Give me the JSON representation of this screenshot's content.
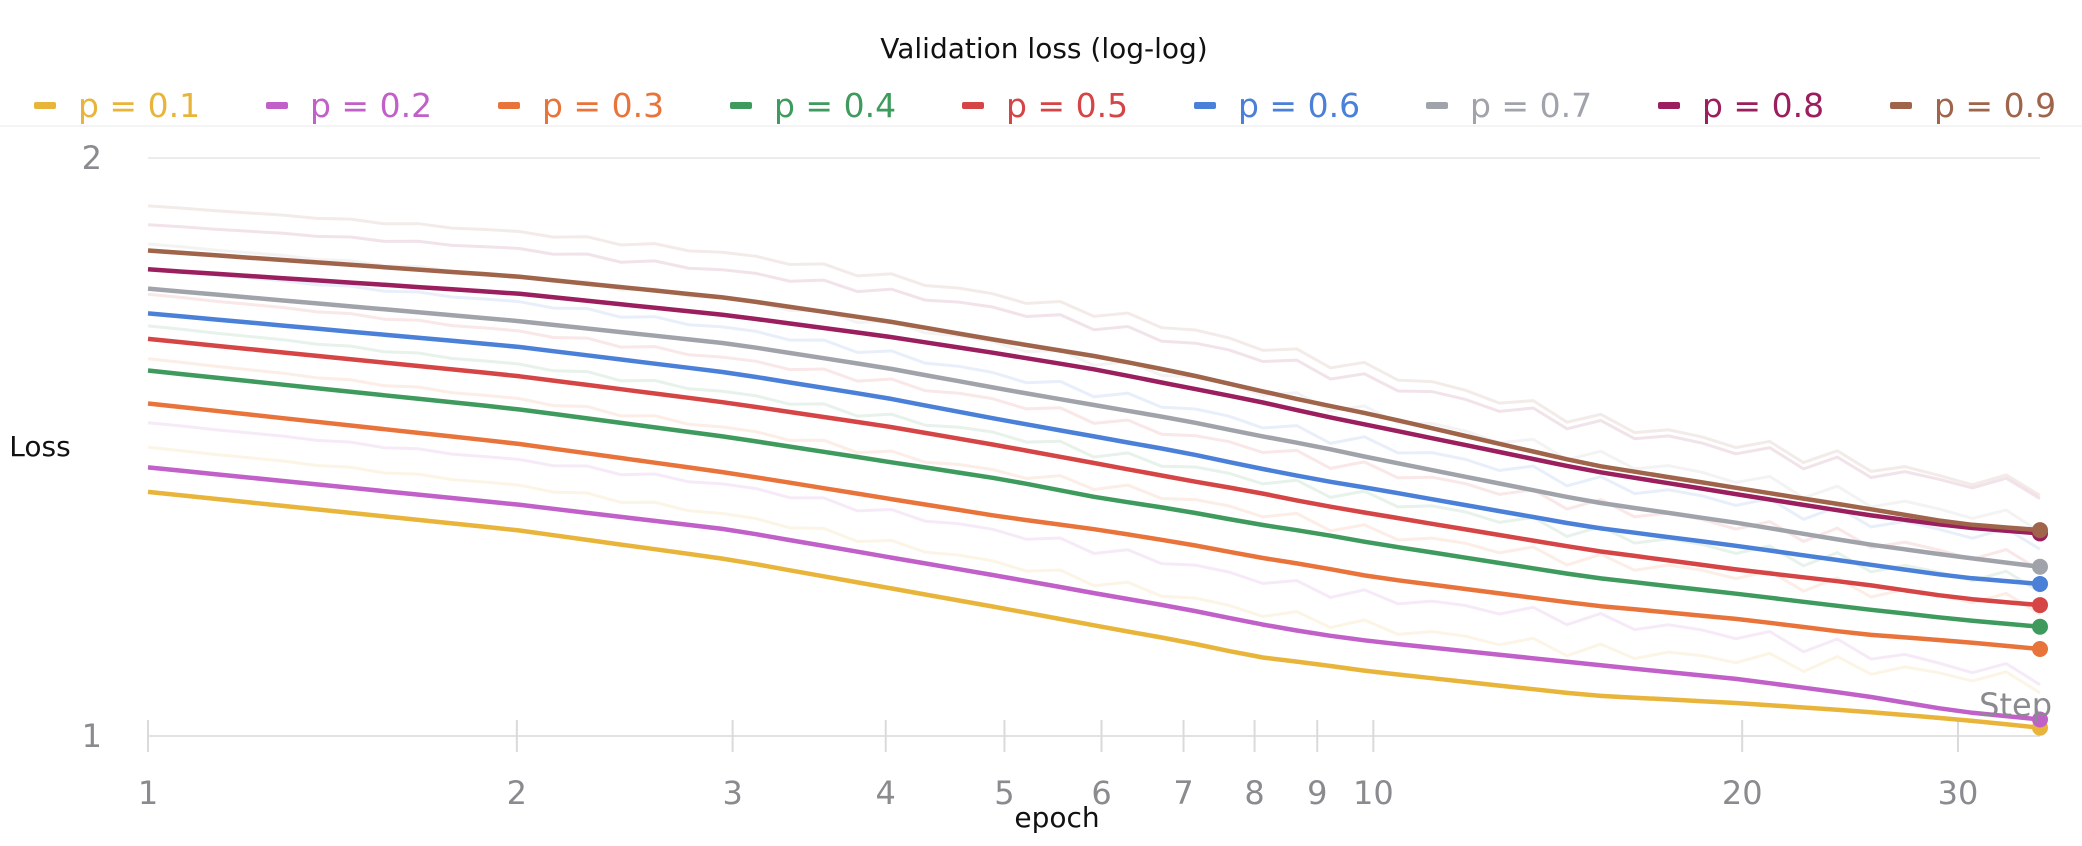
{
  "chart_data": {
    "type": "line",
    "title": "Validation loss (log-log)",
    "xlabel": "epoch",
    "ylabel": "Loss",
    "x_scale": "log",
    "y_scale": "log",
    "xlim": [
      1,
      35
    ],
    "ylim": [
      1,
      2
    ],
    "x_ticks": [
      1,
      2,
      3,
      4,
      5,
      6,
      7,
      8,
      9,
      10,
      20,
      30
    ],
    "x_tick_labels": [
      "1",
      "2",
      "3",
      "4",
      "5",
      "6",
      "7",
      "8",
      "9",
      "10",
      "20",
      "30"
    ],
    "y_ticks": [
      1,
      2
    ],
    "y_tick_labels": [
      "1",
      "2"
    ],
    "grid": "horizontal",
    "legend_position": "top",
    "annotation": "Step",
    "x": [
      1,
      2,
      3,
      4,
      5,
      6,
      7,
      8,
      9,
      10,
      15,
      20,
      25,
      30,
      35
    ],
    "series": [
      {
        "name": "p = 0.1",
        "color": "#e8b53a",
        "values": [
          1.34,
          1.28,
          1.235,
          1.195,
          1.165,
          1.14,
          1.12,
          1.1,
          1.09,
          1.08,
          1.05,
          1.04,
          1.03,
          1.02,
          1.01
        ]
      },
      {
        "name": "p = 0.2",
        "color": "#c060c8",
        "values": [
          1.38,
          1.32,
          1.28,
          1.24,
          1.21,
          1.185,
          1.165,
          1.145,
          1.13,
          1.12,
          1.09,
          1.07,
          1.05,
          1.03,
          1.02
        ]
      },
      {
        "name": "p = 0.3",
        "color": "#e8743b",
        "values": [
          1.49,
          1.42,
          1.37,
          1.33,
          1.3,
          1.28,
          1.26,
          1.24,
          1.225,
          1.21,
          1.17,
          1.15,
          1.13,
          1.12,
          1.11
        ]
      },
      {
        "name": "p = 0.4",
        "color": "#3f9a5e",
        "values": [
          1.55,
          1.48,
          1.43,
          1.39,
          1.36,
          1.33,
          1.31,
          1.29,
          1.275,
          1.26,
          1.21,
          1.185,
          1.165,
          1.15,
          1.14
        ]
      },
      {
        "name": "p = 0.5",
        "color": "#d64545",
        "values": [
          1.61,
          1.54,
          1.49,
          1.45,
          1.415,
          1.385,
          1.36,
          1.34,
          1.32,
          1.305,
          1.25,
          1.22,
          1.2,
          1.18,
          1.17
        ]
      },
      {
        "name": "p = 0.6",
        "color": "#4a80d8",
        "values": [
          1.66,
          1.595,
          1.545,
          1.5,
          1.46,
          1.43,
          1.405,
          1.38,
          1.36,
          1.345,
          1.285,
          1.255,
          1.23,
          1.21,
          1.2
        ]
      },
      {
        "name": "p = 0.7",
        "color": "#a0a4aa",
        "values": [
          1.71,
          1.645,
          1.6,
          1.555,
          1.515,
          1.485,
          1.46,
          1.435,
          1.415,
          1.395,
          1.325,
          1.29,
          1.26,
          1.24,
          1.225
        ]
      },
      {
        "name": "p = 0.8",
        "color": "#9b1f5e",
        "values": [
          1.75,
          1.7,
          1.655,
          1.615,
          1.58,
          1.55,
          1.52,
          1.495,
          1.47,
          1.45,
          1.375,
          1.335,
          1.305,
          1.285,
          1.275
        ]
      },
      {
        "name": "p = 0.9",
        "color": "#a0644a",
        "values": [
          1.79,
          1.735,
          1.69,
          1.645,
          1.605,
          1.575,
          1.545,
          1.515,
          1.49,
          1.47,
          1.385,
          1.345,
          1.315,
          1.29,
          1.28
        ]
      }
    ]
  }
}
